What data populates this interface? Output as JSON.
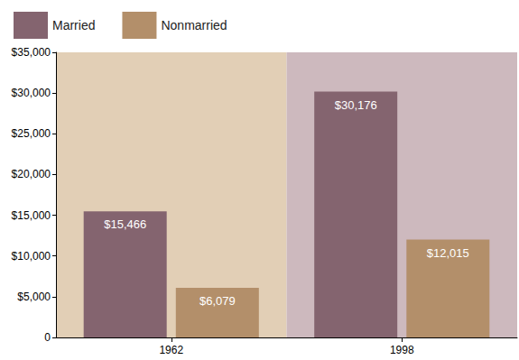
{
  "chart_data": {
    "type": "bar",
    "categories": [
      "1962",
      "1998"
    ],
    "series": [
      {
        "name": "Married",
        "color": "#84646f",
        "values": [
          15466,
          30176
        ],
        "value_labels": [
          "$15,466",
          "$30,176"
        ]
      },
      {
        "name": "Nonmarried",
        "color": "#b38f6a",
        "values": [
          6079,
          12015
        ],
        "value_labels": [
          "$6,079",
          "$12,015"
        ]
      }
    ],
    "ylim": [
      0,
      35000
    ],
    "yticks": [
      0,
      {
        "value": 5000,
        "label": "$5,000"
      },
      {
        "value": 10000,
        "label": "$10,000"
      },
      {
        "value": 15000,
        "label": "$15,000"
      },
      {
        "value": 20000,
        "label": "$20,000"
      },
      {
        "value": 25000,
        "label": "$25,000"
      },
      {
        "value": 30000,
        "label": "$30,000"
      },
      {
        "value": 35000,
        "label": "$35,000"
      }
    ],
    "grid": false,
    "legend": "top-left",
    "data_labels": true
  }
}
